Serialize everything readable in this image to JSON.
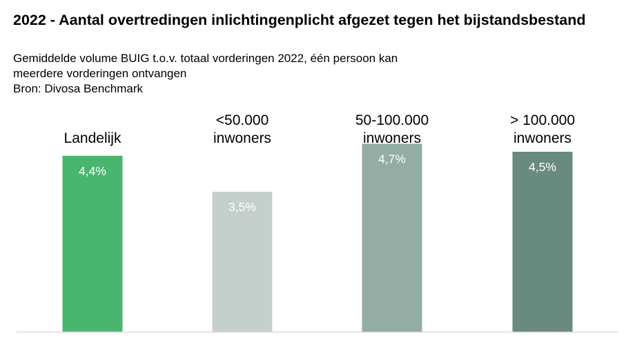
{
  "chart_data": {
    "type": "bar",
    "title": "2022 - Aantal overtredingen inlichtingenplicht afgezet tegen het bijstandsbestand",
    "subtitle_lines": [
      "Gemiddelde volume BUIG t.o.v. totaal vorderingen 2022, één persoon kan",
      "meerdere vorderingen ontvangen",
      "Bron: Divosa Benchmark"
    ],
    "categories": [
      [
        "Landelijk"
      ],
      [
        "<50.000",
        "inwoners"
      ],
      [
        "50-100.000",
        "inwoners"
      ],
      [
        "> 100.000",
        "inwoners"
      ]
    ],
    "values": [
      4.4,
      3.5,
      4.7,
      4.5
    ],
    "value_labels": [
      "4,4%",
      "3,5%",
      "4,7%",
      "4,5%"
    ],
    "colors": [
      "#4ab56e",
      "#c5d0cc",
      "#94ada4",
      "#688a7f"
    ],
    "ylim": [
      0,
      5
    ],
    "baseline_color": "#d9d9d9",
    "grid": false,
    "legend": "none"
  }
}
